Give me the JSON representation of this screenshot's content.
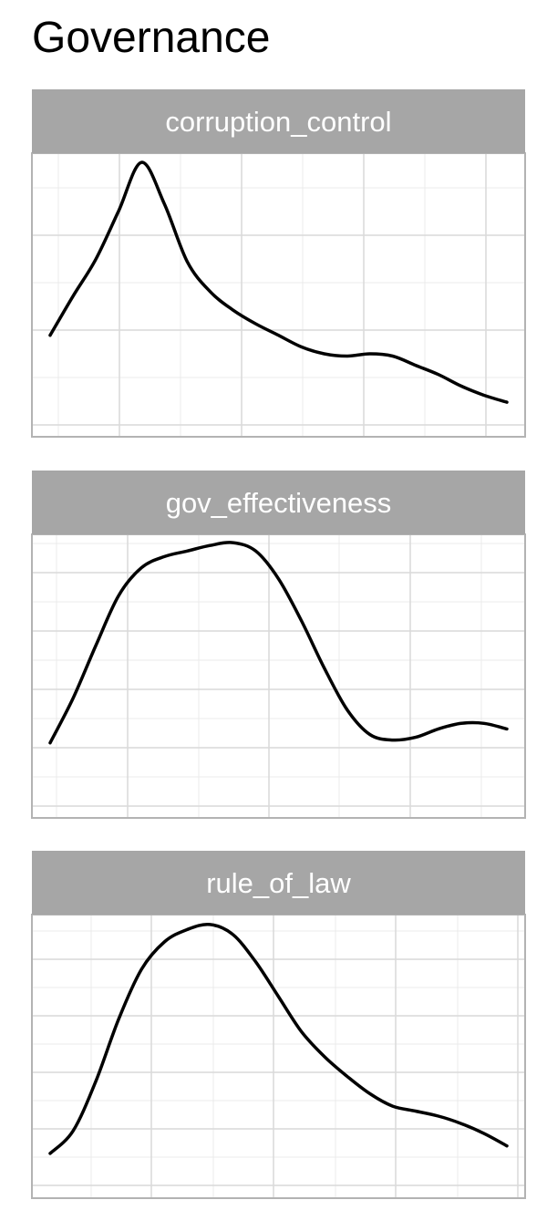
{
  "title": "Governance",
  "colors": {
    "strip_bg": "#a6a6a6",
    "strip_text": "#ffffff",
    "panel_border": "#b3b3b3",
    "grid_major": "#d9d9d9",
    "grid_minor": "#ebebeb",
    "line": "#000000"
  },
  "chart_data": [
    {
      "type": "line",
      "panel_label": "corruption_control",
      "grid": true,
      "x": [
        0.0,
        0.05,
        0.1,
        0.15,
        0.2,
        0.25,
        0.3,
        0.35,
        0.4,
        0.45,
        0.5,
        0.55,
        0.6,
        0.65,
        0.7,
        0.75,
        0.8,
        0.85,
        0.9,
        0.95,
        1.0
      ],
      "y": [
        0.25,
        0.42,
        0.58,
        0.79,
        1.0,
        0.82,
        0.57,
        0.44,
        0.36,
        0.3,
        0.25,
        0.2,
        0.17,
        0.16,
        0.17,
        0.16,
        0.12,
        0.08,
        0.03,
        -0.01,
        -0.04
      ],
      "xlim": [
        -0.04,
        1.04
      ],
      "ylim": [
        -0.19,
        1.04
      ]
    },
    {
      "type": "line",
      "panel_label": "gov_effectiveness",
      "grid": true,
      "x": [
        0.0,
        0.05,
        0.1,
        0.15,
        0.2,
        0.25,
        0.3,
        0.35,
        0.4,
        0.45,
        0.5,
        0.55,
        0.6,
        0.65,
        0.7,
        0.75,
        0.8,
        0.85,
        0.9,
        0.95,
        1.0
      ],
      "y": [
        0.26,
        0.42,
        0.61,
        0.79,
        0.89,
        0.93,
        0.95,
        0.97,
        0.98,
        0.95,
        0.85,
        0.7,
        0.53,
        0.38,
        0.29,
        0.27,
        0.28,
        0.31,
        0.33,
        0.33,
        0.31
      ],
      "xlim": [
        -0.04,
        1.04
      ],
      "ylim": [
        -0.01,
        1.01
      ]
    },
    {
      "type": "line",
      "panel_label": "rule_of_law",
      "grid": true,
      "x": [
        0.0,
        0.05,
        0.1,
        0.15,
        0.2,
        0.25,
        0.3,
        0.35,
        0.4,
        0.45,
        0.5,
        0.55,
        0.6,
        0.65,
        0.7,
        0.75,
        0.8,
        0.85,
        0.9,
        0.95,
        1.0
      ],
      "y": [
        0.08,
        0.17,
        0.37,
        0.62,
        0.82,
        0.93,
        0.98,
        1.0,
        0.96,
        0.85,
        0.71,
        0.57,
        0.47,
        0.39,
        0.32,
        0.27,
        0.25,
        0.23,
        0.2,
        0.16,
        0.11
      ],
      "xlim": [
        -0.04,
        1.04
      ],
      "ylim": [
        -0.1,
        1.04
      ]
    }
  ]
}
